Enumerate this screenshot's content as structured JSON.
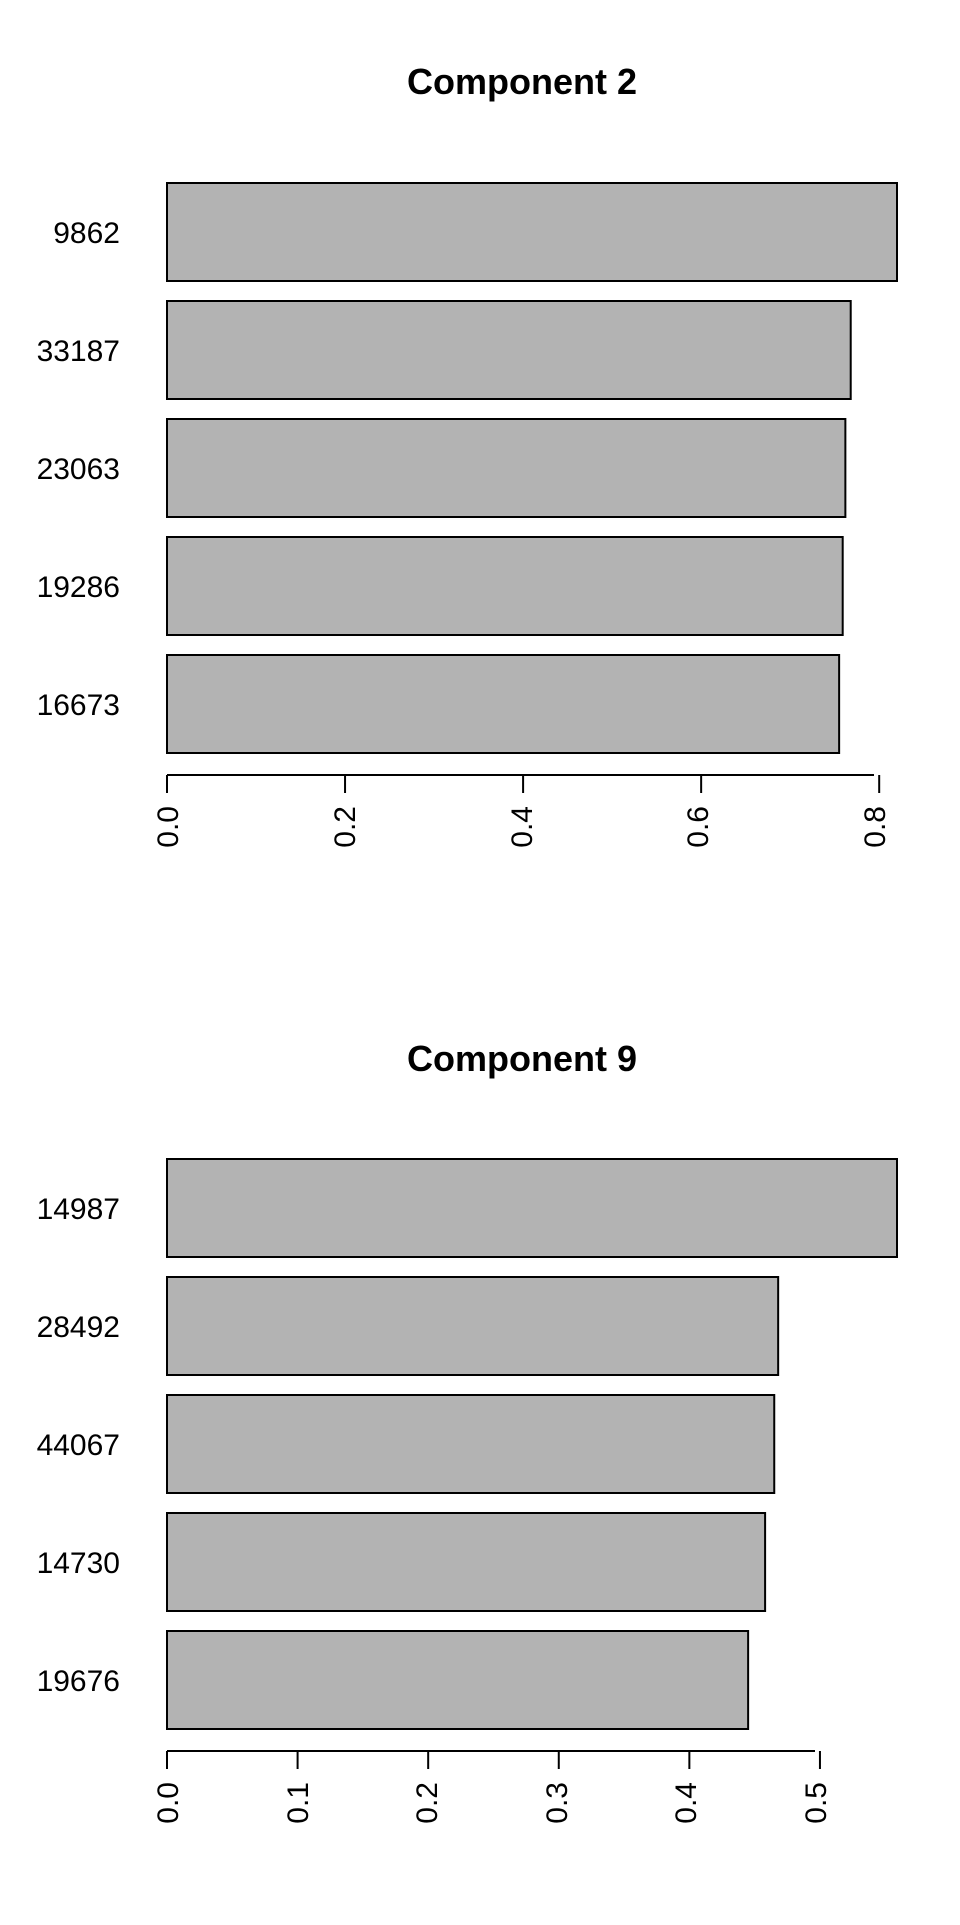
{
  "chart_data": [
    {
      "type": "bar",
      "orientation": "horizontal",
      "title": "Component 2",
      "xlabel": "",
      "ylabel": "",
      "categories": [
        "9862",
        "33187",
        "23063",
        "19286",
        "16673"
      ],
      "values": [
        0.82,
        0.768,
        0.762,
        0.759,
        0.755
      ],
      "xlim": [
        0,
        0.82
      ],
      "xticks": [
        0.0,
        0.2,
        0.4,
        0.6,
        0.8
      ],
      "xtick_labels": [
        "0.0",
        "0.2",
        "0.4",
        "0.6",
        "0.8"
      ],
      "grid": false,
      "colors": {
        "bar_fill": "#b3b3b3",
        "bar_stroke": "#000000"
      }
    },
    {
      "type": "bar",
      "orientation": "horizontal",
      "title": "Component 9",
      "xlabel": "",
      "ylabel": "",
      "categories": [
        "14987",
        "28492",
        "44067",
        "14730",
        "19676"
      ],
      "values": [
        0.559,
        0.468,
        0.465,
        0.458,
        0.445
      ],
      "xlim": [
        0,
        0.559
      ],
      "xticks": [
        0.0,
        0.1,
        0.2,
        0.3,
        0.4,
        0.5
      ],
      "xtick_labels": [
        "0.0",
        "0.1",
        "0.2",
        "0.3",
        "0.4",
        "0.5"
      ],
      "grid": false,
      "colors": {
        "bar_fill": "#b3b3b3",
        "bar_stroke": "#000000"
      }
    }
  ]
}
